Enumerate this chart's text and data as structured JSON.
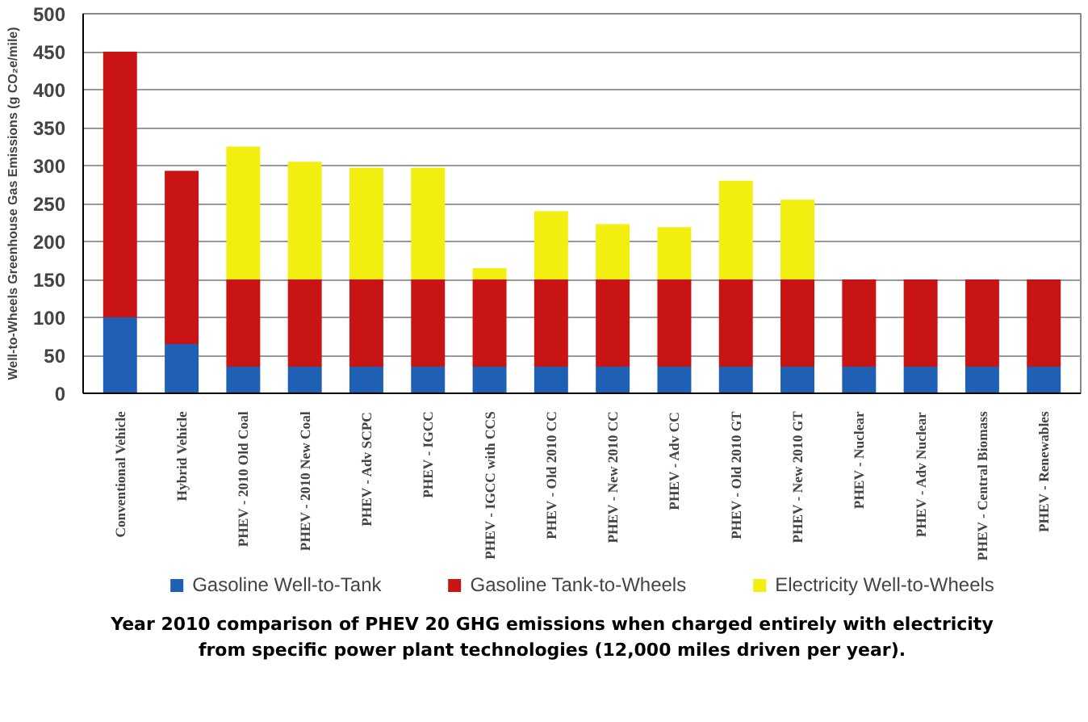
{
  "chart_data": {
    "type": "bar",
    "stacked": true,
    "ylabel": "Well-to-Wheels Greenhouse Gas Emissions (g CO₂e/mile)",
    "categories": [
      "Conventional Vehicle",
      "Hybrid Vehicle",
      "PHEV - 2010 Old Coal",
      "PHEV - 2010 New Coal",
      "PHEV - Adv SCPC",
      "PHEV - IGCC",
      "PHEV - IGCC with CCS",
      "PHEV - Old 2010 CC",
      "PHEV - New 2010 CC",
      "PHEV - Adv CC",
      "PHEV - Old 2010 GT",
      "PHEV - New 2010 GT",
      "PHEV - Nuclear",
      "PHEV - Adv Nuclear",
      "PHEV - Central Biomass",
      "PHEV - Renewables"
    ],
    "series": [
      {
        "name": "Gasoline Well-to-Tank",
        "color": "#1f5fb4",
        "values": [
          100,
          65,
          35,
          35,
          35,
          35,
          35,
          35,
          35,
          35,
          35,
          35,
          35,
          35,
          35,
          35
        ]
      },
      {
        "name": "Gasoline Tank-to-Wheels",
        "color": "#c81414",
        "values": [
          350,
          228,
          115,
          115,
          115,
          115,
          115,
          115,
          115,
          115,
          115,
          115,
          115,
          115,
          115,
          115
        ]
      },
      {
        "name": "Electricity Well-to-Wheels",
        "color": "#f2ee10",
        "values": [
          0,
          0,
          175,
          155,
          147,
          147,
          15,
          90,
          73,
          69,
          130,
          105,
          0,
          0,
          0,
          0
        ]
      }
    ],
    "ylim": [
      0,
      500
    ],
    "yticks": [
      0,
      50,
      100,
      150,
      200,
      250,
      300,
      350,
      400,
      450,
      500
    ],
    "grid": "y",
    "legend": "bottom",
    "annotations": [
      "Year 2010 comparison of PHEV 20 GHG emissions when charged entirely with electricity\nfrom specific power plant technologies (12,000 miles driven per year)."
    ]
  }
}
